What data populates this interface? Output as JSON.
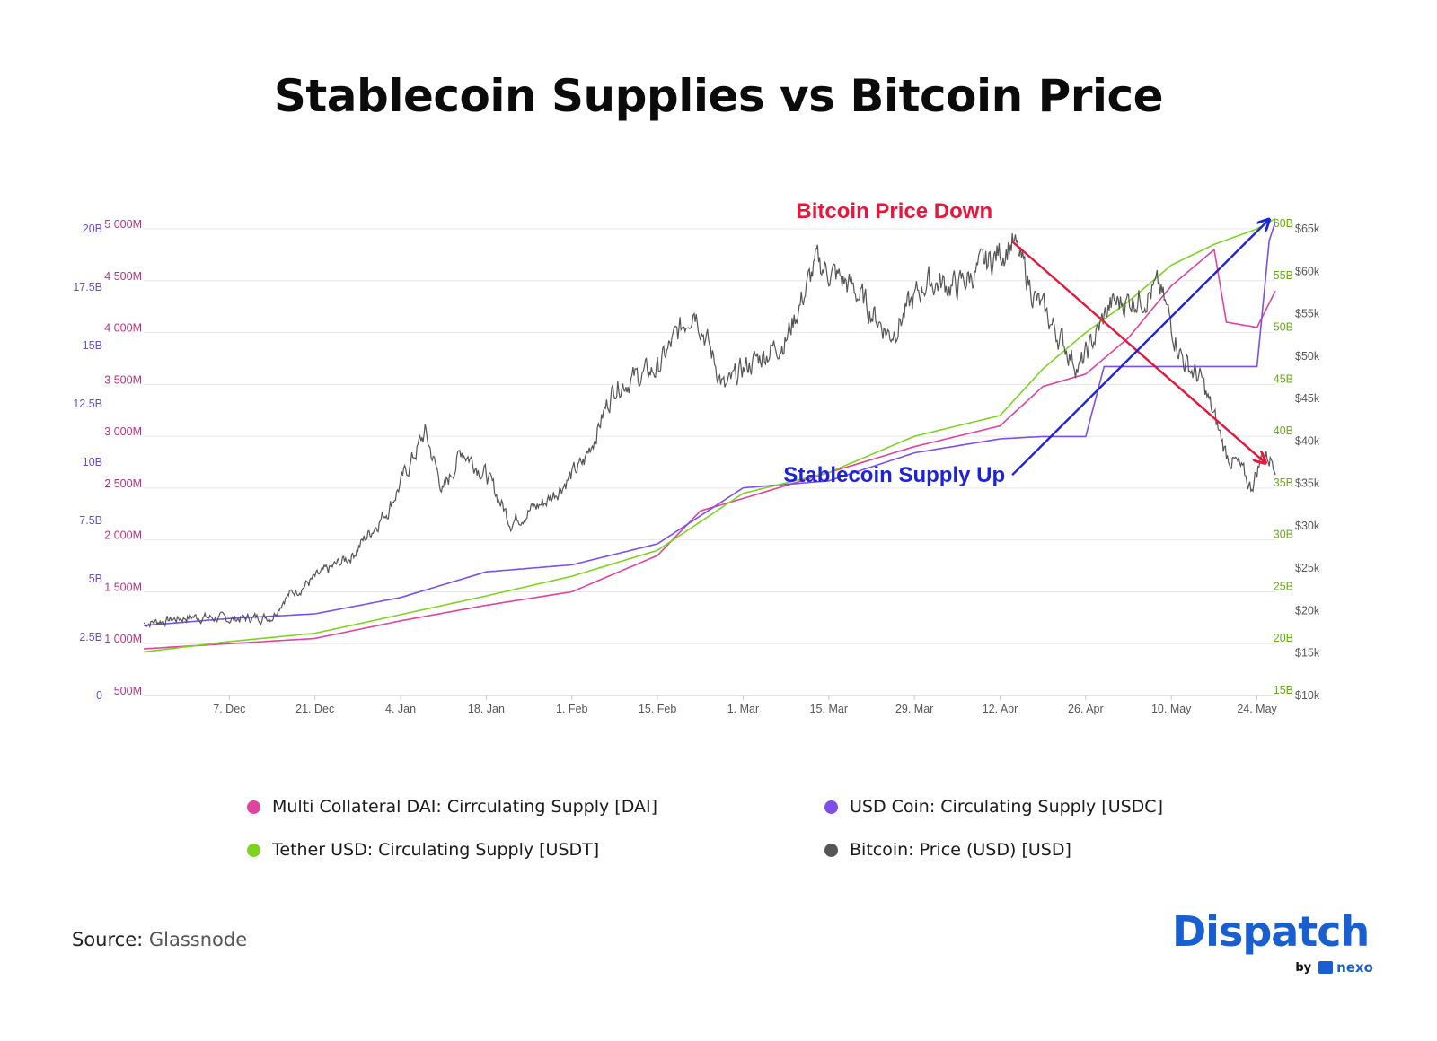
{
  "title": "Stablecoin Supplies vs Bitcoin Price",
  "source": {
    "label": "Source:",
    "value": "Glassnode"
  },
  "brand": {
    "name": "Dispatch",
    "by": "by",
    "partner": "nexo"
  },
  "colors": {
    "dai": "#e0439e",
    "usdc": "#7b4fe8",
    "usdt": "#7ed321",
    "btc": "#555555",
    "annotation_down": "#e8163b",
    "annotation_up": "#1d24d8",
    "grid": "#e6e6e6"
  },
  "chart_data": {
    "type": "line",
    "x_ticks": [
      "7. Dec",
      "21. Dec",
      "4. Jan",
      "18. Jan",
      "1. Feb",
      "15. Feb",
      "1. Mar",
      "15. Mar",
      "29. Mar",
      "12. Apr",
      "26. Apr",
      "10. May",
      "24. May"
    ],
    "x_range": [
      "2020-11-23",
      "2021-05-27"
    ],
    "axes": {
      "usdc": {
        "ticks": [
          "0",
          "2.5B",
          "5B",
          "7.5B",
          "10B",
          "12.5B",
          "15B",
          "17.5B",
          "20B"
        ],
        "ylim": [
          0,
          20
        ],
        "unit": "B"
      },
      "dai": {
        "ticks": [
          "500M",
          "1 000M",
          "1 500M",
          "2 000M",
          "2 500M",
          "3 000M",
          "3 500M",
          "4 000M",
          "4 500M",
          "5 000M"
        ],
        "ylim": [
          500,
          5000
        ],
        "unit": "M"
      },
      "usdt": {
        "ticks": [
          "15B",
          "20B",
          "25B",
          "30B",
          "35B",
          "40B",
          "45B",
          "50B",
          "55B",
          "60B"
        ],
        "ylim": [
          15,
          60
        ],
        "unit": "B"
      },
      "btc": {
        "ticks": [
          "$10k",
          "$15k",
          "$20k",
          "$25k",
          "$30k",
          "$35k",
          "$40k",
          "$45k",
          "$50k",
          "$55k",
          "$60k",
          "$65k"
        ],
        "ylim": [
          10000,
          65000
        ],
        "unit": "USD"
      }
    },
    "series": [
      {
        "name": "Multi Collateral DAI: Cirrculating Supply [DAI]",
        "key": "dai",
        "axis": "dai",
        "x": [
          "2020-11-23",
          "2020-12-07",
          "2020-12-21",
          "2021-01-04",
          "2021-01-18",
          "2021-02-01",
          "2021-02-15",
          "2021-02-22",
          "2021-03-01",
          "2021-03-15",
          "2021-03-29",
          "2021-04-12",
          "2021-04-19",
          "2021-04-26",
          "2021-05-03",
          "2021-05-10",
          "2021-05-17",
          "2021-05-19",
          "2021-05-24",
          "2021-05-27"
        ],
        "values": [
          950,
          1000,
          1050,
          1220,
          1370,
          1500,
          1850,
          2280,
          2400,
          2650,
          2900,
          3100,
          3480,
          3600,
          3950,
          4450,
          4800,
          4100,
          4050,
          4400
        ]
      },
      {
        "name": "USD Coin: Circulating Supply [USDC]",
        "key": "usdc",
        "axis": "usdc",
        "x": [
          "2020-11-23",
          "2020-12-07",
          "2020-12-21",
          "2021-01-04",
          "2021-01-18",
          "2021-02-01",
          "2021-02-15",
          "2021-03-01",
          "2021-03-15",
          "2021-03-29",
          "2021-04-12",
          "2021-04-19",
          "2021-04-26",
          "2021-04-29",
          "2021-05-10",
          "2021-05-24",
          "2021-05-26",
          "2021-05-27"
        ],
        "values": [
          3.0,
          3.3,
          3.5,
          4.2,
          5.3,
          5.6,
          6.5,
          8.9,
          9.2,
          10.4,
          11.0,
          11.1,
          11.1,
          14.1,
          14.1,
          14.1,
          19.5,
          20.3
        ]
      },
      {
        "name": "Tether USD: Circulating Supply [USDT]",
        "key": "usdt",
        "axis": "usdt",
        "x": [
          "2020-11-23",
          "2020-12-07",
          "2020-12-21",
          "2021-01-04",
          "2021-01-18",
          "2021-02-01",
          "2021-02-15",
          "2021-03-01",
          "2021-03-15",
          "2021-03-29",
          "2021-04-12",
          "2021-04-19",
          "2021-04-26",
          "2021-05-03",
          "2021-05-10",
          "2021-05-17",
          "2021-05-24",
          "2021-05-27"
        ],
        "values": [
          19.2,
          20.2,
          21.0,
          22.8,
          24.6,
          26.5,
          29.0,
          34.5,
          36.5,
          40.0,
          42.0,
          46.5,
          50.0,
          53.0,
          56.5,
          58.5,
          60.0,
          61.0
        ]
      },
      {
        "name": "Bitcoin: Price (USD) [USD]",
        "key": "btc",
        "axis": "btc",
        "x": [
          "2020-11-23",
          "2020-12-01",
          "2020-12-07",
          "2020-12-14",
          "2020-12-16",
          "2020-12-21",
          "2020-12-27",
          "2021-01-02",
          "2021-01-08",
          "2021-01-11",
          "2021-01-14",
          "2021-01-18",
          "2021-01-22",
          "2021-01-28",
          "2021-02-03",
          "2021-02-08",
          "2021-02-15",
          "2021-02-21",
          "2021-02-26",
          "2021-03-01",
          "2021-03-08",
          "2021-03-13",
          "2021-03-19",
          "2021-03-25",
          "2021-03-31",
          "2021-04-05",
          "2021-04-10",
          "2021-04-14",
          "2021-04-18",
          "2021-04-25",
          "2021-04-30",
          "2021-05-05",
          "2021-05-08",
          "2021-05-12",
          "2021-05-15",
          "2021-05-19",
          "2021-05-21",
          "2021-05-23",
          "2021-05-25",
          "2021-05-27"
        ],
        "values": [
          18500,
          19300,
          19000,
          19300,
          21500,
          23800,
          26500,
          32000,
          41000,
          34000,
          39000,
          36000,
          30500,
          33000,
          37500,
          46500,
          48500,
          56000,
          46000,
          48500,
          52000,
          61000,
          58000,
          52500,
          58800,
          58200,
          61000,
          63500,
          56500,
          48500,
          56000,
          57000,
          58000,
          49500,
          47000,
          38500,
          37000,
          34500,
          38500,
          37500
        ]
      }
    ],
    "annotations": [
      {
        "text": "Bitcoin Price Down",
        "color_key": "annotation_down",
        "from": [
          "2021-04-14",
          63500
        ],
        "to": [
          "2021-05-27",
          37500
        ],
        "axis": "btc"
      },
      {
        "text": "Stablecoin Supply Up",
        "color_key": "annotation_up",
        "from": [
          "2021-04-14",
          36000
        ],
        "to": [
          "2021-05-27",
          66000
        ],
        "axis": "btc"
      }
    ],
    "grid": true,
    "legend_placement": "bottom"
  }
}
